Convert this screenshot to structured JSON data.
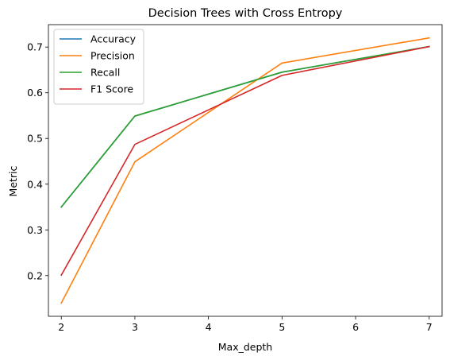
{
  "chart_data": {
    "type": "line",
    "title": "Decision Trees with Cross Entropy",
    "xlabel": "Max_depth",
    "ylabel": "Metric",
    "xlim": [
      1.825,
      7.175
    ],
    "ylim": [
      0.111,
      0.749
    ],
    "xticks": [
      2,
      3,
      4,
      5,
      6,
      7
    ],
    "yticks": [
      0.2,
      0.3,
      0.4,
      0.5,
      0.6,
      0.7
    ],
    "x": [
      2,
      3,
      5,
      7
    ],
    "legend_position": "top-left",
    "grid": false,
    "series": [
      {
        "name": "Accuracy",
        "color": "#1f77b4",
        "values": [
          0.35,
          0.549,
          0.645,
          0.701
        ]
      },
      {
        "name": "Precision",
        "color": "#ff7f0e",
        "values": [
          0.14,
          0.449,
          0.665,
          0.72
        ]
      },
      {
        "name": "Recall",
        "color": "#2ca02c",
        "values": [
          0.35,
          0.549,
          0.645,
          0.701
        ]
      },
      {
        "name": "F1 Score",
        "color": "#d62728",
        "values": [
          0.201,
          0.487,
          0.638,
          0.701
        ]
      }
    ]
  }
}
